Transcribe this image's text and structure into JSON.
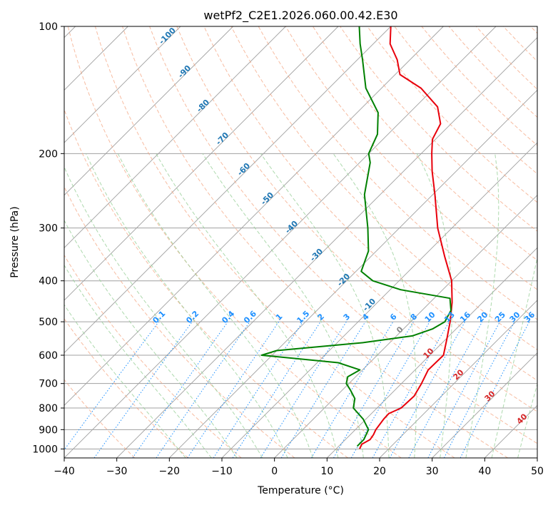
{
  "chart_data": {
    "type": "line",
    "subtype": "skew-t log-p diagram",
    "title": "wetPf2_C2E1.2026.060.00.42.E30",
    "xlabel": "Temperature (°C)",
    "ylabel": "Pressure (hPa)",
    "xlim": [
      -40,
      50
    ],
    "ylim": [
      1050,
      100
    ],
    "x_ticks": [
      "−40",
      "−30",
      "−20",
      "−10",
      "0",
      "10",
      "20",
      "30",
      "40",
      "50"
    ],
    "x_tick_values": [
      -40,
      -30,
      -20,
      -10,
      0,
      10,
      20,
      30,
      40,
      50
    ],
    "y_ticks": [
      "100",
      "200",
      "300",
      "400",
      "500",
      "600",
      "700",
      "800",
      "900",
      "1000"
    ],
    "y_tick_values": [
      100,
      200,
      300,
      400,
      500,
      600,
      700,
      800,
      900,
      1000
    ],
    "grid": true,
    "series": [
      {
        "name": "temperature",
        "color": "#e8000b",
        "points": [
          [
            1000,
            14.5
          ],
          [
            975,
            14.0
          ],
          [
            950,
            14.7
          ],
          [
            925,
            14.4
          ],
          [
            900,
            13.9
          ],
          [
            850,
            13.4
          ],
          [
            825,
            13.3
          ],
          [
            800,
            14.6
          ],
          [
            750,
            14.8
          ],
          [
            700,
            13.8
          ],
          [
            650,
            12.5
          ],
          [
            600,
            12.6
          ],
          [
            550,
            10.2
          ],
          [
            500,
            7.5
          ],
          [
            450,
            4.2
          ],
          [
            400,
            0.0
          ],
          [
            350,
            -6.0
          ],
          [
            300,
            -12.7
          ],
          [
            250,
            -19.6
          ],
          [
            220,
            -24.6
          ],
          [
            200,
            -28.0
          ],
          [
            185,
            -30.6
          ],
          [
            170,
            -32.0
          ],
          [
            155,
            -35.8
          ],
          [
            140,
            -42.5
          ],
          [
            130,
            -49.1
          ],
          [
            120,
            -52.4
          ],
          [
            110,
            -56.8
          ],
          [
            100,
            -60.0
          ]
        ]
      },
      {
        "name": "dewpoint",
        "color": "#008000",
        "points": [
          [
            985,
            13.5
          ],
          [
            950,
            13.5
          ],
          [
            900,
            12.5
          ],
          [
            850,
            9.5
          ],
          [
            800,
            5.5
          ],
          [
            760,
            4.0
          ],
          [
            725,
            1.5
          ],
          [
            700,
            -0.5
          ],
          [
            675,
            -1.5
          ],
          [
            650,
            -0.5
          ],
          [
            625,
            -6.0
          ],
          [
            600,
            -22.0
          ],
          [
            585,
            -20.0
          ],
          [
            560,
            -5.0
          ],
          [
            540,
            3.0
          ],
          [
            520,
            5.5
          ],
          [
            500,
            6.5
          ],
          [
            470,
            5.5
          ],
          [
            440,
            3.0
          ],
          [
            420,
            -8.0
          ],
          [
            400,
            -15.0
          ],
          [
            380,
            -19.0
          ],
          [
            340,
            -21.5
          ],
          [
            300,
            -26.0
          ],
          [
            250,
            -33.0
          ],
          [
            210,
            -38.0
          ],
          [
            200,
            -40.0
          ],
          [
            180,
            -42.0
          ],
          [
            160,
            -46.0
          ],
          [
            140,
            -53.0
          ],
          [
            120,
            -59.0
          ],
          [
            110,
            -62.5
          ],
          [
            100,
            -66.0
          ]
        ]
      }
    ],
    "dry_adiabat_labels": [
      "-100",
      "-90",
      "-80",
      "-70",
      "-60",
      "-50",
      "-40",
      "-30",
      "-20",
      "-10"
    ],
    "dry_adiabat_values": [
      -100,
      -90,
      -80,
      -70,
      -60,
      -50,
      -40,
      -30,
      -20,
      -10
    ],
    "mixing_ratio_labels": [
      "0.1",
      "0.2",
      "0.4",
      "0.6",
      "1",
      "1.5",
      "2",
      "3",
      "4",
      "6",
      "8",
      "10",
      "13",
      "16",
      "20",
      "25",
      "30",
      "36"
    ],
    "mixing_ratio_values": [
      0.1,
      0.2,
      0.4,
      0.6,
      1,
      1.5,
      2,
      3,
      4,
      6,
      8,
      10,
      13,
      16,
      20,
      25,
      30,
      36
    ],
    "moist_adiabat_labels": [
      "0",
      "10",
      "20",
      "30",
      "40"
    ],
    "moist_adiabat_values": [
      0,
      10,
      20,
      30,
      40
    ],
    "colors": {
      "dry_adiabat": "#f4a582",
      "moist_adiabat": "#98d098",
      "mixing_ratio": "#1e90ff",
      "isotherm": "#a0a0a0",
      "isobar": "#a0a0a0"
    }
  }
}
